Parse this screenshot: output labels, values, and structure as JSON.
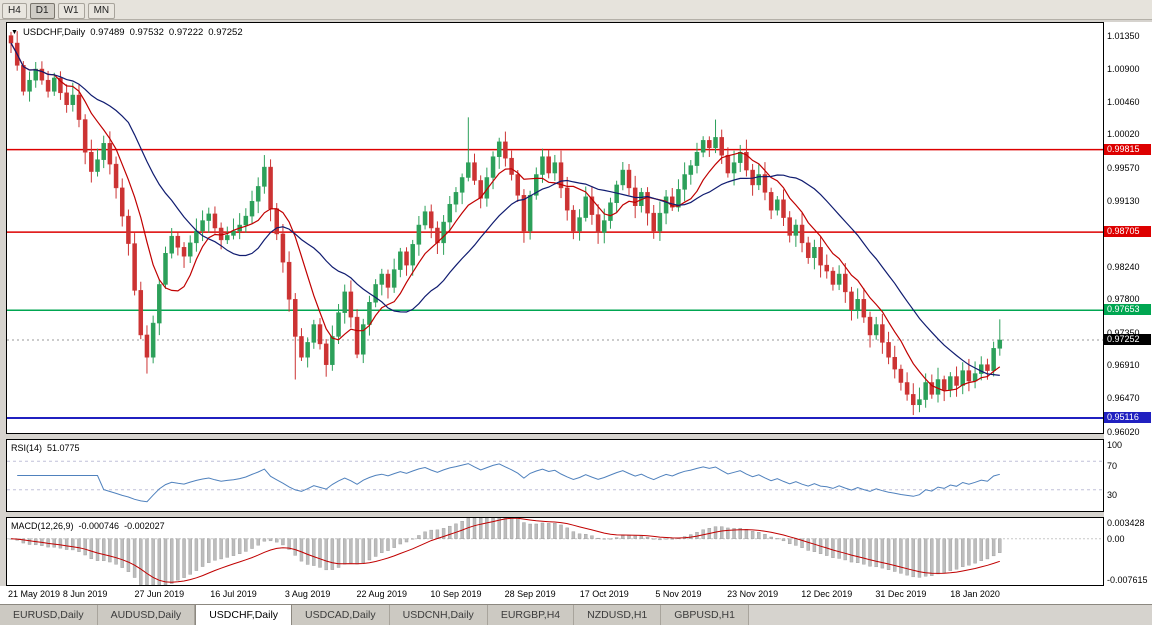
{
  "toolbar": {
    "periods": [
      "H4",
      "D1",
      "W1",
      "MN"
    ],
    "active": "D1"
  },
  "header": {
    "symbol": "USDCHF,Daily",
    "open": "0.97489",
    "high": "0.97532",
    "low": "0.97222",
    "close": "0.97252"
  },
  "axis": {
    "y_ticks": [
      "1.01350",
      "1.00900",
      "1.00460",
      "1.00020",
      "0.99570",
      "0.99130",
      "0.98690",
      "0.98240",
      "0.97800",
      "0.97350",
      "0.96910",
      "0.96470",
      "0.96020"
    ],
    "x_labels": [
      "21 May 2019",
      "8 Jun 2019",
      "27 Jun 2019",
      "16 Jul 2019",
      "3 Aug 2019",
      "22 Aug 2019",
      "10 Sep 2019",
      "28 Sep 2019",
      "17 Oct 2019",
      "5 Nov 2019",
      "23 Nov 2019",
      "12 Dec 2019",
      "31 Dec 2019",
      "18 Jan 2020"
    ]
  },
  "levels": [
    {
      "label": "0.99815",
      "value": 0.99815,
      "color": "#dd0000",
      "width": 1.5
    },
    {
      "label": "0.98705",
      "value": 0.98705,
      "color": "#dd0000",
      "width": 1.5
    },
    {
      "label": "0.97653",
      "value": 0.97653,
      "color": "#00a651",
      "width": 1.5
    },
    {
      "label": "0.95116",
      "value": 0.95116,
      "color": "#2020c0",
      "width": 2
    }
  ],
  "current_price": {
    "label": "0.97252",
    "value": 0.97252,
    "badge_color": "#000000"
  },
  "rsi": {
    "name": "RSI(14)",
    "value": "51.0775",
    "ticks": [
      "100",
      "70",
      "30"
    ],
    "upper_level": 70,
    "lower_level": 30
  },
  "macd": {
    "name": "MACD(12,26,9)",
    "main": "-0.000746",
    "signal": "-0.002027",
    "tick_top": "0.003428",
    "tick_zero": "0.00",
    "tick_bottom": "-0.007615"
  },
  "tabs": {
    "items": [
      {
        "label": "EURUSD,Daily"
      },
      {
        "label": "AUDUSD,Daily"
      },
      {
        "label": "USDCHF,Daily",
        "active": true
      },
      {
        "label": "USDCAD,Daily"
      },
      {
        "label": "USDCNH,Daily"
      },
      {
        "label": "EURGBP,H4"
      },
      {
        "label": "NZDUSD,H1"
      },
      {
        "label": "GBPUSD,H1"
      }
    ]
  },
  "palette": {
    "bull": "#2ca05a",
    "bear": "#cc3333",
    "ma_fast": "#c00000",
    "ma_slow": "#101c70",
    "rsi_line": "#4f81bd",
    "rsi_levels": "#c0c0d8",
    "macd_hist_fill": "#bdbdbd",
    "macd_hist_stroke": "#9a9a9a",
    "macd_signal": "#c00000",
    "current_line": "#999999"
  },
  "chart_data": {
    "type": "candlestick",
    "title": "USDCHF Daily",
    "symbol": "USDCHF",
    "timeframe": "Daily",
    "ylim": [
      0.96,
      1.0152
    ],
    "x_labels": [
      "21 May 2019",
      "8 Jun 2019",
      "27 Jun 2019",
      "16 Jul 2019",
      "3 Aug 2019",
      "22 Aug 2019",
      "10 Sep 2019",
      "28 Sep 2019",
      "17 Oct 2019",
      "5 Nov 2019",
      "23 Nov 2019",
      "12 Dec 2019",
      "31 Dec 2019",
      "18 Jan 2020"
    ],
    "bars_per_label": 12,
    "first_open": 1.0135,
    "closes": [
      1.0125,
      1.0095,
      1.006,
      1.0075,
      1.009,
      1.0075,
      1.006,
      1.0078,
      1.0058,
      1.0042,
      1.0055,
      1.0022,
      0.9978,
      0.9952,
      0.9968,
      0.999,
      0.9962,
      0.993,
      0.9892,
      0.9855,
      0.9792,
      0.9732,
      0.9702,
      0.9748,
      0.98,
      0.9842,
      0.9865,
      0.985,
      0.9838,
      0.9856,
      0.9872,
      0.9886,
      0.9895,
      0.9876,
      0.986,
      0.9866,
      0.9872,
      0.988,
      0.9892,
      0.9912,
      0.9932,
      0.9958,
      0.9902,
      0.9868,
      0.983,
      0.978,
      0.973,
      0.9702,
      0.9722,
      0.9746,
      0.972,
      0.9692,
      0.973,
      0.9762,
      0.979,
      0.9756,
      0.9706,
      0.9746,
      0.9776,
      0.98,
      0.9814,
      0.9796,
      0.982,
      0.9844,
      0.9826,
      0.9854,
      0.988,
      0.9898,
      0.9876,
      0.9856,
      0.9884,
      0.9908,
      0.9924,
      0.9944,
      0.9964,
      0.994,
      0.9916,
      0.9944,
      0.9972,
      0.9992,
      0.997,
      0.9948,
      0.992,
      0.9872,
      0.992,
      0.9948,
      0.9972,
      0.995,
      0.9964,
      0.993,
      0.99,
      0.9872,
      0.989,
      0.9918,
      0.9894,
      0.987,
      0.9886,
      0.991,
      0.9934,
      0.9954,
      0.993,
      0.9906,
      0.9924,
      0.9896,
      0.9872,
      0.9896,
      0.9918,
      0.9904,
      0.9928,
      0.9948,
      0.996,
      0.9978,
      0.9994,
      0.9984,
      0.9998,
      0.9974,
      0.995,
      0.9964,
      0.9978,
      0.9954,
      0.9934,
      0.9948,
      0.9924,
      0.99,
      0.9914,
      0.989,
      0.9866,
      0.988,
      0.9856,
      0.9836,
      0.985,
      0.9826,
      0.9818,
      0.98,
      0.9814,
      0.979,
      0.9766,
      0.978,
      0.9756,
      0.9732,
      0.9746,
      0.9722,
      0.9702,
      0.9686,
      0.9668,
      0.9652,
      0.9638,
      0.9645,
      0.9668,
      0.9652,
      0.9672,
      0.9658,
      0.9676,
      0.9664,
      0.9684,
      0.967,
      0.968,
      0.9692,
      0.9684,
      0.9714,
      0.97252
    ],
    "wick_overrides": {
      "22": {
        "low": 0.968
      },
      "46": {
        "low": 0.9672
      },
      "74": {
        "high": 1.0025
      },
      "114": {
        "high": 1.0022
      },
      "147": {
        "low": 0.9628
      },
      "160": {
        "high": 0.9753
      }
    },
    "overlays": [
      {
        "name": "MA fast",
        "type": "sma",
        "period": 8
      },
      {
        "name": "MA slow",
        "type": "sma",
        "period": 20
      }
    ],
    "indicators": [
      {
        "name": "RSI",
        "period": 14,
        "last_value": 51.0775
      },
      {
        "name": "MACD",
        "params": [
          12,
          26,
          9
        ],
        "last_main": -0.000746,
        "last_signal": -0.002027
      }
    ]
  }
}
